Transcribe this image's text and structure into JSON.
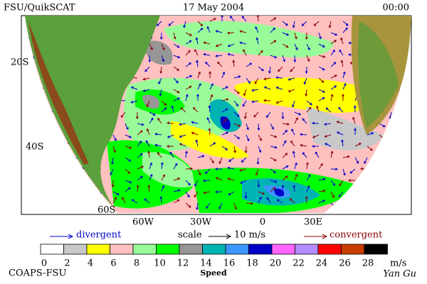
{
  "header": {
    "left": "FSU/QuikSCAT",
    "center": "17 May 2004",
    "right": "00:00"
  },
  "map": {
    "lat_labels": [
      "20S",
      "40S",
      "60S"
    ],
    "lon_labels": [
      "60W",
      "30W",
      "0",
      "30E"
    ]
  },
  "legend": {
    "divergent": "divergent",
    "scale": "scale",
    "scale_value": "10 m/s",
    "convergent": "convergent"
  },
  "colorbar": {
    "colors": [
      "#ffffff",
      "#c8c8c8",
      "#ffff00",
      "#ffc0c0",
      "#98fb98",
      "#00ff00",
      "#969696",
      "#00b4b4",
      "#3c96ff",
      "#0000c8",
      "#ff64ff",
      "#b48cff",
      "#ff0000",
      "#c83c00",
      "#000000"
    ],
    "ticks": [
      0,
      2,
      4,
      6,
      8,
      10,
      12,
      14,
      16,
      18,
      20,
      22,
      24,
      26,
      28
    ],
    "unit": "m/s",
    "title": "Speed"
  },
  "footer": {
    "left": "COAPS-FSU",
    "right": "Yan Gu"
  }
}
